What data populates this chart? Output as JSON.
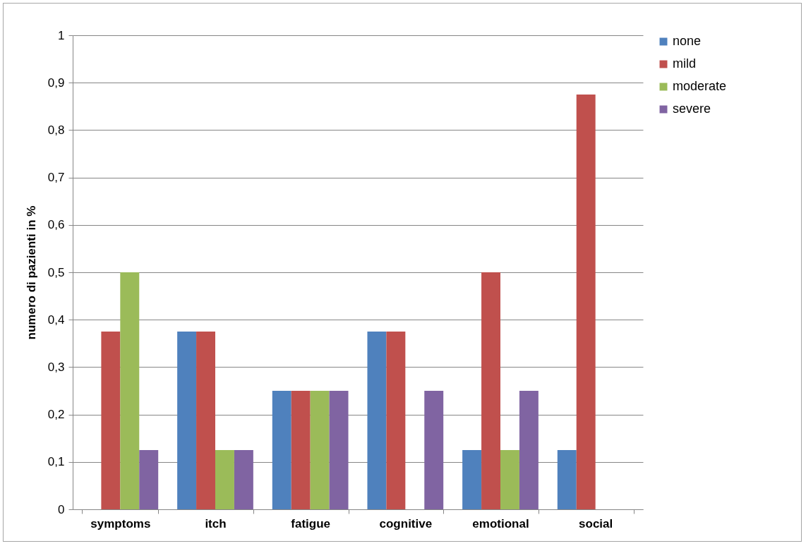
{
  "chart_data": {
    "type": "bar",
    "ylabel": "numero di pazienti in %",
    "categories": [
      "symptoms",
      "itch",
      "fatigue",
      "cognitive",
      "emotional",
      "social"
    ],
    "series": [
      {
        "name": "none",
        "color": "#4f81bd",
        "values": [
          0,
          0.375,
          0.25,
          0.375,
          0.125,
          0.125
        ]
      },
      {
        "name": "mild",
        "color": "#c0504d",
        "values": [
          0.375,
          0.375,
          0.25,
          0.375,
          0.5,
          0.875
        ]
      },
      {
        "name": "moderate",
        "color": "#9bbb59",
        "values": [
          0.5,
          0.125,
          0.25,
          0,
          0.125,
          0
        ]
      },
      {
        "name": "severe",
        "color": "#8064a2",
        "values": [
          0.125,
          0.125,
          0.25,
          0.25,
          0.25,
          0
        ]
      }
    ],
    "ylim": [
      0,
      1
    ],
    "yticks": [
      0,
      {
        "value": 0.1,
        "label": "0,1"
      },
      {
        "value": 0.2,
        "label": "0,2"
      },
      {
        "value": 0.3,
        "label": "0,3"
      },
      {
        "value": 0.4,
        "label": "0,4"
      },
      {
        "value": 0.5,
        "label": "0,5"
      },
      {
        "value": 0.6,
        "label": "0,6"
      },
      {
        "value": 0.7,
        "label": "0,7"
      },
      {
        "value": 0.8,
        "label": "0,8"
      },
      {
        "value": 0.9,
        "label": "0,9"
      },
      1
    ],
    "grid": "y",
    "legend": "right"
  }
}
